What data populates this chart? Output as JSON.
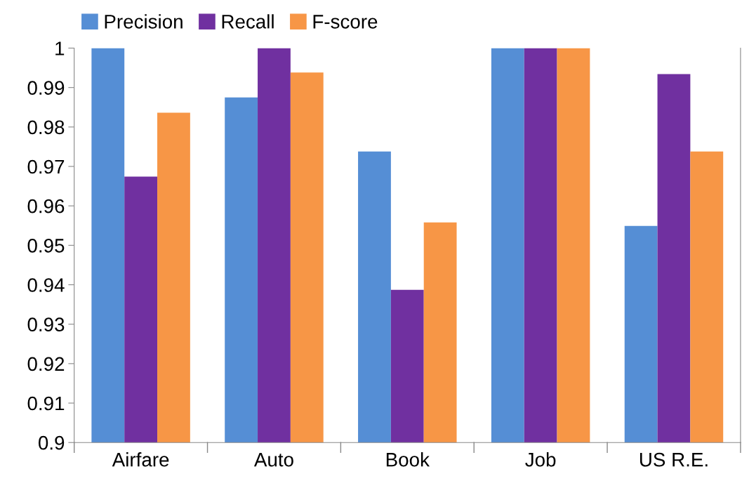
{
  "chart_data": {
    "type": "bar",
    "categories": [
      "Airfare",
      "Auto",
      "Book",
      "Job",
      "US R.E."
    ],
    "series": [
      {
        "name": "Precision",
        "color": "#558ed5",
        "values": [
          1.0,
          0.9875,
          0.9738,
          1.0,
          0.9549
        ]
      },
      {
        "name": "Recall",
        "color": "#7030a0",
        "values": [
          0.9674,
          1.0,
          0.9387,
          1.0,
          0.9934
        ]
      },
      {
        "name": "F-score",
        "color": "#f79646",
        "values": [
          0.9836,
          0.9938,
          0.9558,
          1.0,
          0.9738
        ]
      }
    ],
    "ylim": [
      0.9,
      1.0
    ],
    "yticks": [
      {
        "value": 0.9,
        "label": "0.9"
      },
      0.91,
      0.92,
      0.93,
      0.94,
      0.95,
      0.96,
      0.97,
      0.98,
      0.99,
      {
        "value": 1.0,
        "label": "1"
      }
    ],
    "grid": false,
    "legend": "top left"
  }
}
